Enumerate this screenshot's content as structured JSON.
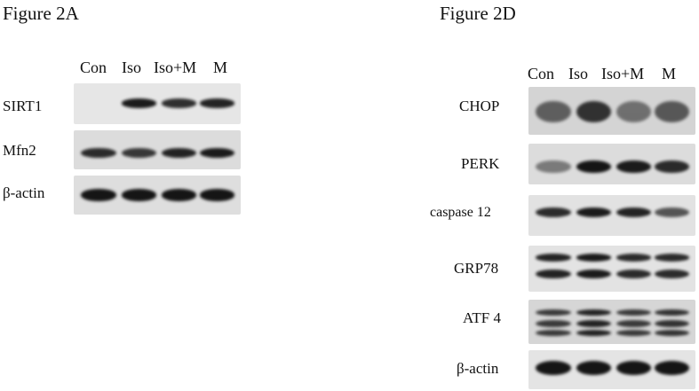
{
  "panels": [
    {
      "title": "Figure 2A",
      "lanes": [
        "Con",
        "Iso",
        "Iso+M",
        "M"
      ],
      "rows": [
        {
          "label": "SIRT1",
          "bg": "#e6e6e6",
          "intensity": [
            0.0,
            0.9,
            0.78,
            0.85
          ]
        },
        {
          "label": "Mfn2",
          "bg": "#dcdcdc",
          "intensity": [
            0.8,
            0.72,
            0.85,
            0.9
          ]
        },
        {
          "label": "β-actin",
          "bg": "#dedede",
          "intensity": [
            1.0,
            1.0,
            1.0,
            1.0
          ]
        }
      ]
    },
    {
      "title": "Figure 2D",
      "lanes": [
        "Con",
        "Iso",
        "Iso+M",
        "M"
      ],
      "rows": [
        {
          "label": "CHOP",
          "bg": "#d4d4d4",
          "intensity": [
            0.45,
            0.75,
            0.35,
            0.5
          ]
        },
        {
          "label": "PERK",
          "bg": "#dcdcdc",
          "intensity": [
            0.3,
            0.95,
            0.9,
            0.8
          ]
        },
        {
          "label": "caspase 12",
          "bg": "#e2e2e2",
          "intensity": [
            0.8,
            0.9,
            0.85,
            0.55
          ]
        },
        {
          "label": "GRP78",
          "bg": "#e3e3e3",
          "intensity": [
            0.85,
            0.9,
            0.8,
            0.8
          ]
        },
        {
          "label": "ATF 4",
          "bg": "#d6d6d6",
          "intensity": [
            0.7,
            0.85,
            0.7,
            0.75
          ]
        },
        {
          "label": "β-actin",
          "bg": "#e4e4e4",
          "intensity": [
            1.0,
            0.95,
            1.0,
            1.0
          ]
        }
      ]
    }
  ]
}
